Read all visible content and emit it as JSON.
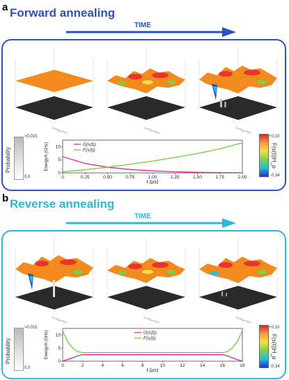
{
  "panels": [
    {
      "letter": "a",
      "title": "Forward annealing",
      "time_label": "TIME",
      "accent": "#2e52b8",
      "prob_colorbar": {
        "top": ">0.015",
        "bottom": "0.0",
        "label": "Probability"
      },
      "energy_colorbar": {
        "top": "+0.10",
        "bottom": "-0.34",
        "label": "F(s(t))H_p"
      },
      "configuration_label": "Configuration",
      "chart_data": {
        "type": "line",
        "xlabel": "t (μs)",
        "ylabel": "Energy/h (GHz)",
        "xlim": [
          0,
          2.0
        ],
        "ylim": [
          0,
          12.5
        ],
        "xticks": [
          "0",
          "0.25",
          "0.50",
          "0.75",
          "1.00",
          "1.25",
          "1.50",
          "1.75",
          "2.00"
        ],
        "yticks": [
          "0",
          "5",
          "10"
        ],
        "legend_position": "top-left",
        "series": [
          {
            "name": "G(s(t))",
            "color": "#e0149a",
            "x": [
              0,
              0.25,
              0.5,
              0.75,
              1.0,
              1.25,
              1.5,
              1.75,
              2.0
            ],
            "y": [
              6.2,
              3.6,
              2.2,
              1.3,
              0.8,
              0.45,
              0.25,
              0.12,
              0.05
            ]
          },
          {
            "name": "F(s(t))",
            "color": "#66cc22",
            "x": [
              0,
              0.25,
              0.5,
              0.75,
              1.0,
              1.25,
              1.5,
              1.75,
              2.0
            ],
            "y": [
              0.4,
              1.2,
              2.2,
              3.3,
              4.5,
              5.9,
              7.4,
              9.2,
              11.5
            ]
          }
        ]
      }
    },
    {
      "letter": "b",
      "title": "Reverse annealing",
      "time_label": "TIME",
      "accent": "#2cb8d6",
      "prob_colorbar": {
        "top": ">0.015",
        "bottom": "0.0",
        "label": "Probability"
      },
      "energy_colorbar": {
        "top": "+0.10",
        "bottom": "-0.34",
        "label": "F(s(t))H_p"
      },
      "configuration_label": "Configuration",
      "chart_data": {
        "type": "line",
        "xlabel": "t (μs)",
        "ylabel": "Energy/h (GHz)",
        "xlim": [
          0,
          18
        ],
        "ylim": [
          0,
          12.5
        ],
        "xticks": [
          "0",
          "2",
          "4",
          "6",
          "8",
          "10",
          "12",
          "14",
          "16",
          "18"
        ],
        "yticks": [
          "0",
          "5",
          "10"
        ],
        "legend_position": "top-center",
        "series": [
          {
            "name": "G(s(t))",
            "color": "#e0149a",
            "x": [
              0,
              0.5,
              1.0,
              1.5,
              2.0,
              16.0,
              16.5,
              17.0,
              17.5,
              18.0
            ],
            "y": [
              0.05,
              0.6,
              1.3,
              2.0,
              2.5,
              2.5,
              2.0,
              1.3,
              0.6,
              0.05
            ]
          },
          {
            "name": "F(s(t))",
            "color": "#66cc22",
            "x": [
              0,
              0.5,
              1.0,
              1.5,
              2.0,
              16.0,
              16.5,
              17.0,
              17.5,
              18.0
            ],
            "y": [
              11.5,
              7.5,
              5.0,
              3.6,
              3.3,
              3.3,
              3.6,
              5.0,
              7.5,
              11.5
            ]
          }
        ]
      }
    }
  ]
}
